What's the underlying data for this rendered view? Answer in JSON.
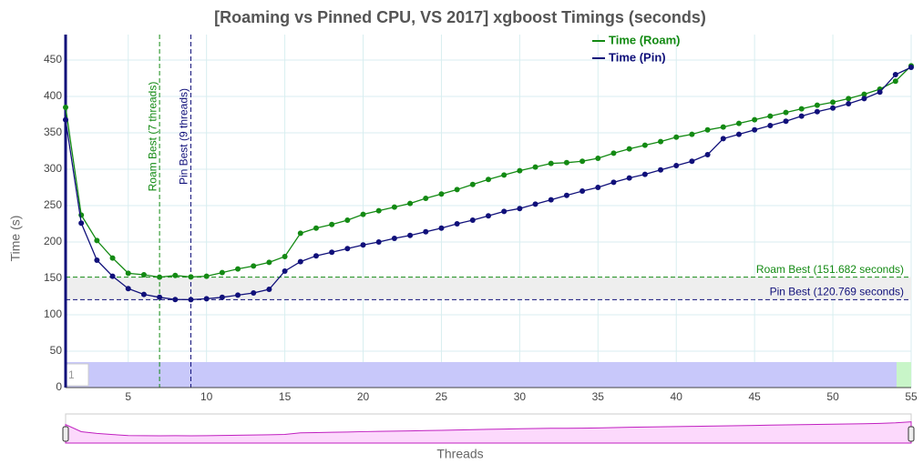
{
  "chart_data": {
    "type": "line",
    "title": "[Roaming vs Pinned CPU, VS 2017] xgboost Timings (seconds)",
    "x_label": "Threads",
    "y_label": "Time (s)",
    "x": [
      1,
      2,
      3,
      4,
      5,
      6,
      7,
      8,
      9,
      10,
      11,
      12,
      13,
      14,
      15,
      16,
      17,
      18,
      19,
      20,
      21,
      22,
      23,
      24,
      25,
      26,
      27,
      28,
      29,
      30,
      31,
      32,
      33,
      34,
      35,
      36,
      37,
      38,
      39,
      40,
      41,
      42,
      43,
      44,
      45,
      46,
      47,
      48,
      49,
      50,
      51,
      52,
      53,
      54,
      55
    ],
    "series": [
      {
        "name": "Time (Roam)",
        "color": "#138a13",
        "values": [
          385,
          237,
          202,
          178,
          157,
          155,
          151.682,
          154,
          152,
          153,
          158,
          163,
          167,
          172,
          180,
          212,
          219,
          224,
          230,
          238,
          243,
          248,
          253,
          260,
          266,
          272,
          279,
          286,
          292,
          298,
          303,
          308,
          309,
          311,
          315,
          322,
          328,
          333,
          338,
          344,
          348,
          354,
          358,
          363,
          368,
          373,
          378,
          383,
          388,
          392,
          397,
          403,
          410,
          421,
          442
        ]
      },
      {
        "name": "Time (Pin)",
        "color": "#10107a",
        "values": [
          368,
          226,
          175,
          153,
          136,
          128,
          124,
          121,
          120.769,
          122,
          124,
          127,
          130,
          135,
          160,
          173,
          181,
          186,
          191,
          196,
          200,
          205,
          209,
          214,
          219,
          225,
          230,
          236,
          242,
          246,
          252,
          258,
          264,
          270,
          275,
          282,
          288,
          293,
          299,
          305,
          311,
          320,
          342,
          348,
          354,
          360,
          366,
          373,
          379,
          384,
          390,
          397,
          406,
          430,
          440
        ]
      }
    ],
    "vlines": [
      {
        "value": 7,
        "label": "Roam Best (7 threads)",
        "color": "#138a13"
      },
      {
        "value": 9,
        "label": "Pin Best (9 threads)",
        "color": "#10107a"
      }
    ],
    "hlines": [
      {
        "value": 151.682,
        "label": "Roam Best (151.682 seconds)",
        "color": "#138a13"
      },
      {
        "value": 120.769,
        "label": "Pin Best (120.769 seconds)",
        "color": "#10107a"
      }
    ],
    "band_label": "1",
    "xlim": [
      1,
      55
    ],
    "ylim": [
      0,
      485
    ],
    "xticks": [
      5,
      10,
      15,
      20,
      25,
      30,
      35,
      40,
      45,
      50,
      55
    ],
    "yticks": [
      0,
      50,
      100,
      150,
      200,
      250,
      300,
      350,
      400,
      450
    ],
    "grid": true,
    "legend": "top-right"
  }
}
